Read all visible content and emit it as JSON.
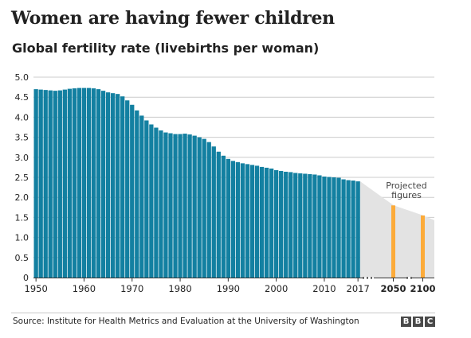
{
  "header": {
    "title": "Women are having fewer children",
    "subtitle": "Global fertility rate (livebirths per woman)"
  },
  "footer": {
    "source": "Source: Institute for Health Metrics and Evaluation at the University of Washington",
    "logo_letters": [
      "B",
      "B",
      "C"
    ]
  },
  "colors": {
    "historical_bar": "#1380a1",
    "projected_bar": "#fcab3a",
    "projection_fill": "#e3e3e3",
    "grid": "#cccccc",
    "text": "#222222"
  },
  "chart_data": {
    "type": "bar",
    "title": "Women are having fewer children",
    "subtitle": "Global fertility rate (livebirths per woman)",
    "ylim": [
      0,
      5
    ],
    "y_ticks": [
      "0",
      "0.5",
      "1.0",
      "1.5",
      "2.0",
      "2.5",
      "3.0",
      "3.5",
      "4.0",
      "4.5",
      "5.0"
    ],
    "grid": true,
    "x_ticks": [
      "1950",
      "1960",
      "1970",
      "1980",
      "1990",
      "2000",
      "2010",
      "2017"
    ],
    "projected_ticks": [
      "2050",
      "2100"
    ],
    "annotation": [
      "Projected",
      "figures"
    ],
    "series": [
      {
        "kind": "historical",
        "x": [
          1950,
          1951,
          1952,
          1953,
          1954,
          1955,
          1956,
          1957,
          1958,
          1959,
          1960,
          1961,
          1962,
          1963,
          1964,
          1965,
          1966,
          1967,
          1968,
          1969,
          1970,
          1971,
          1972,
          1973,
          1974,
          1975,
          1976,
          1977,
          1978,
          1979,
          1980,
          1981,
          1982,
          1983,
          1984,
          1985,
          1986,
          1987,
          1988,
          1989,
          1990,
          1991,
          1992,
          1993,
          1994,
          1995,
          1996,
          1997,
          1998,
          1999,
          2000,
          2001,
          2002,
          2003,
          2004,
          2005,
          2006,
          2007,
          2008,
          2009,
          2010,
          2011,
          2012,
          2013,
          2014,
          2015,
          2016,
          2017
        ],
        "values": [
          4.7,
          4.69,
          4.68,
          4.67,
          4.66,
          4.67,
          4.69,
          4.71,
          4.72,
          4.73,
          4.73,
          4.73,
          4.72,
          4.7,
          4.66,
          4.62,
          4.6,
          4.58,
          4.52,
          4.42,
          4.31,
          4.17,
          4.04,
          3.92,
          3.82,
          3.74,
          3.67,
          3.62,
          3.6,
          3.58,
          3.58,
          3.59,
          3.57,
          3.54,
          3.5,
          3.46,
          3.38,
          3.27,
          3.14,
          3.04,
          2.96,
          2.91,
          2.88,
          2.85,
          2.83,
          2.81,
          2.79,
          2.76,
          2.74,
          2.72,
          2.68,
          2.66,
          2.64,
          2.63,
          2.61,
          2.6,
          2.59,
          2.58,
          2.57,
          2.55,
          2.52,
          2.51,
          2.5,
          2.49,
          2.45,
          2.43,
          2.42,
          2.4
        ]
      },
      {
        "kind": "projected",
        "x": [
          2050,
          2100
        ],
        "values": [
          1.8,
          1.55
        ]
      }
    ]
  }
}
